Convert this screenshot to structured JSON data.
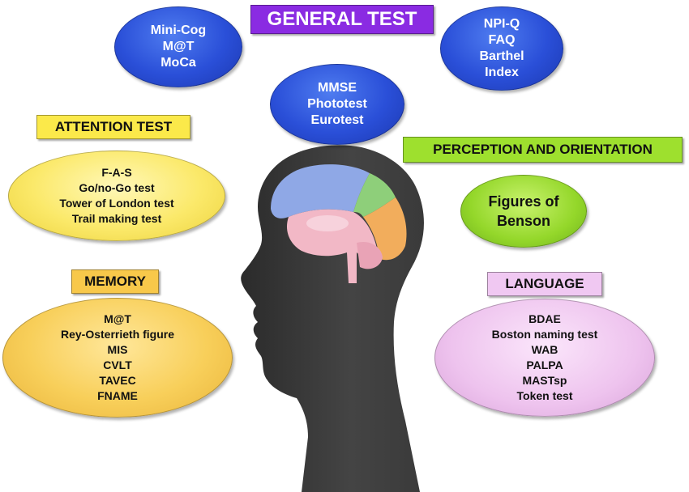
{
  "general": {
    "title": "GENERAL TEST",
    "left_tests": [
      "Mini-Cog",
      "M@T",
      "MoCa"
    ],
    "center_tests": [
      "MMSE",
      "Phototest",
      "Eurotest"
    ],
    "right_tests": [
      "NPI-Q",
      "FAQ",
      "Barthel",
      "Index"
    ]
  },
  "attention": {
    "title": "ATTENTION TEST",
    "tests": [
      "F-A-S",
      "Go/no-Go test",
      "Tower of London test",
      "Trail making test"
    ]
  },
  "memory": {
    "title": "MEMORY",
    "tests": [
      "M@T",
      "Rey-Osterrieth figure",
      "MIS",
      "CVLT",
      "TAVEC",
      "FNAME"
    ]
  },
  "perception": {
    "title": "PERCEPTION AND ORIENTATION",
    "tests": [
      "Figures of",
      "Benson"
    ]
  },
  "language": {
    "title": "LANGUAGE",
    "tests": [
      "BDAE",
      "Boston naming test",
      "WAB",
      "PALPA",
      "MASTsp",
      "Token test"
    ]
  },
  "colors": {
    "general_label": "#8a2be2",
    "attention_label": "#fbe94a",
    "memory_label": "#f8c84a",
    "perception_label": "#9ee02e",
    "language_label": "#f0c8f2",
    "head": "#3a3a3a",
    "brain_blue": "#8fa8e6",
    "brain_green": "#8ecf7a",
    "brain_orange": "#f2ad5c",
    "brain_pink": "#f2b8c6"
  }
}
